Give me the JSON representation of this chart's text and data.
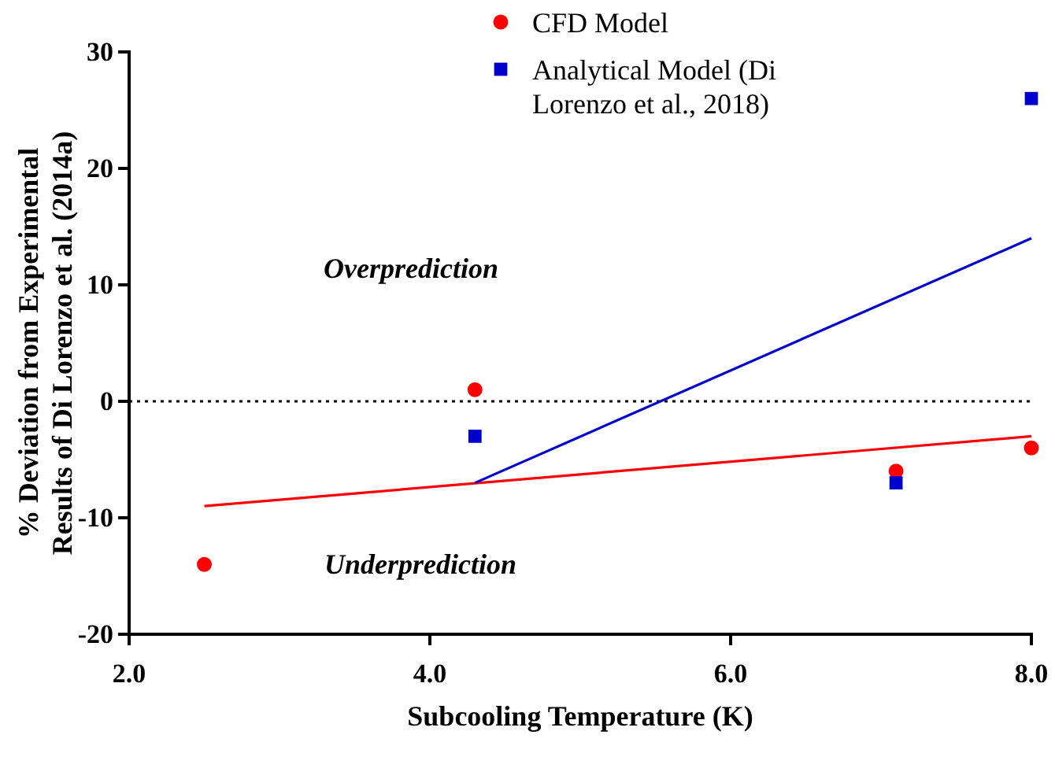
{
  "chart_data": {
    "type": "scatter",
    "xlabel": "Subcooling Temperature (K)",
    "ylabel": "% Deviation from Experimental Results of Di Lorenzo et al. (2014a)",
    "xlim": [
      2,
      8
    ],
    "xticks": [
      {
        "value": 2,
        "label": "2.0"
      },
      {
        "value": 4,
        "label": "4.0"
      },
      {
        "value": 6,
        "label": "6.0"
      },
      {
        "value": 8,
        "label": "8.0"
      }
    ],
    "ylim": [
      -20,
      30
    ],
    "yticks": [
      -20,
      -10,
      0,
      10,
      20,
      30
    ],
    "grid": false,
    "legend": "top right",
    "series": [
      {
        "name": "CFD Model",
        "marker": "circle",
        "color": "#ff0000",
        "x": [
          2.5,
          4.3,
          7.1,
          8
        ],
        "values": [
          -14,
          1,
          -6,
          -4
        ]
      },
      {
        "name": "Analytical Model (Di Lorenzo et al., 2018)",
        "marker": "square",
        "color": "#0000cc",
        "x": [
          4.3,
          7.1,
          8
        ],
        "values": [
          -3,
          -7,
          26
        ]
      },
      {
        "type": "line",
        "marker": "none",
        "color": "#ff0000",
        "x": [
          2.5,
          8
        ],
        "values": [
          -9,
          -3
        ]
      },
      {
        "type": "line",
        "marker": "none",
        "color": "#0000cc",
        "x": [
          4.3,
          8
        ],
        "values": [
          -7,
          14
        ]
      }
    ],
    "ref_lines": [
      {
        "axis": "y",
        "value": 0,
        "line_style": "dotted",
        "color": "#000000"
      }
    ],
    "annotations": [
      "Overprediction",
      "Underprediction"
    ]
  }
}
